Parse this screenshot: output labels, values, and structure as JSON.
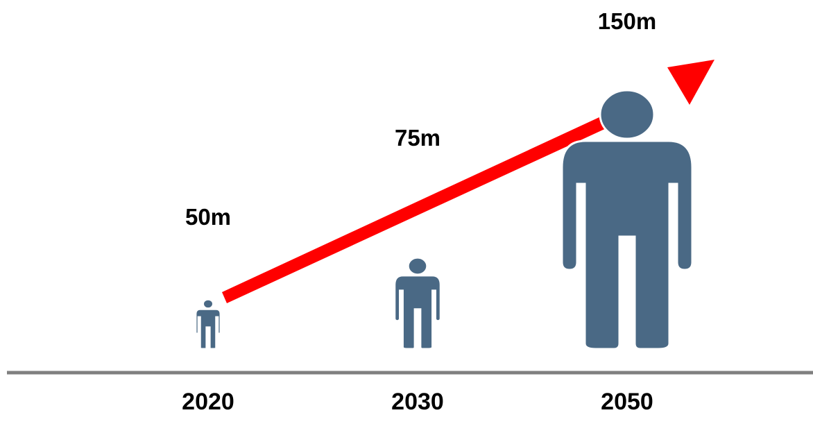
{
  "chart_data": {
    "type": "pictograph",
    "title": "",
    "categories": [
      "2020",
      "2030",
      "2050"
    ],
    "values": [
      50,
      75,
      150
    ],
    "value_labels": [
      "50m",
      "75m",
      "150m"
    ],
    "trend": "increasing",
    "grid": false,
    "legend": "none"
  },
  "colors": {
    "figure": "#4a6985",
    "arrow": "#ff0000",
    "baseline": "#808080",
    "text": "#000000",
    "background": "#ffffff"
  },
  "icons": {
    "figure": "person-icon",
    "trend": "trend-arrow-icon"
  }
}
